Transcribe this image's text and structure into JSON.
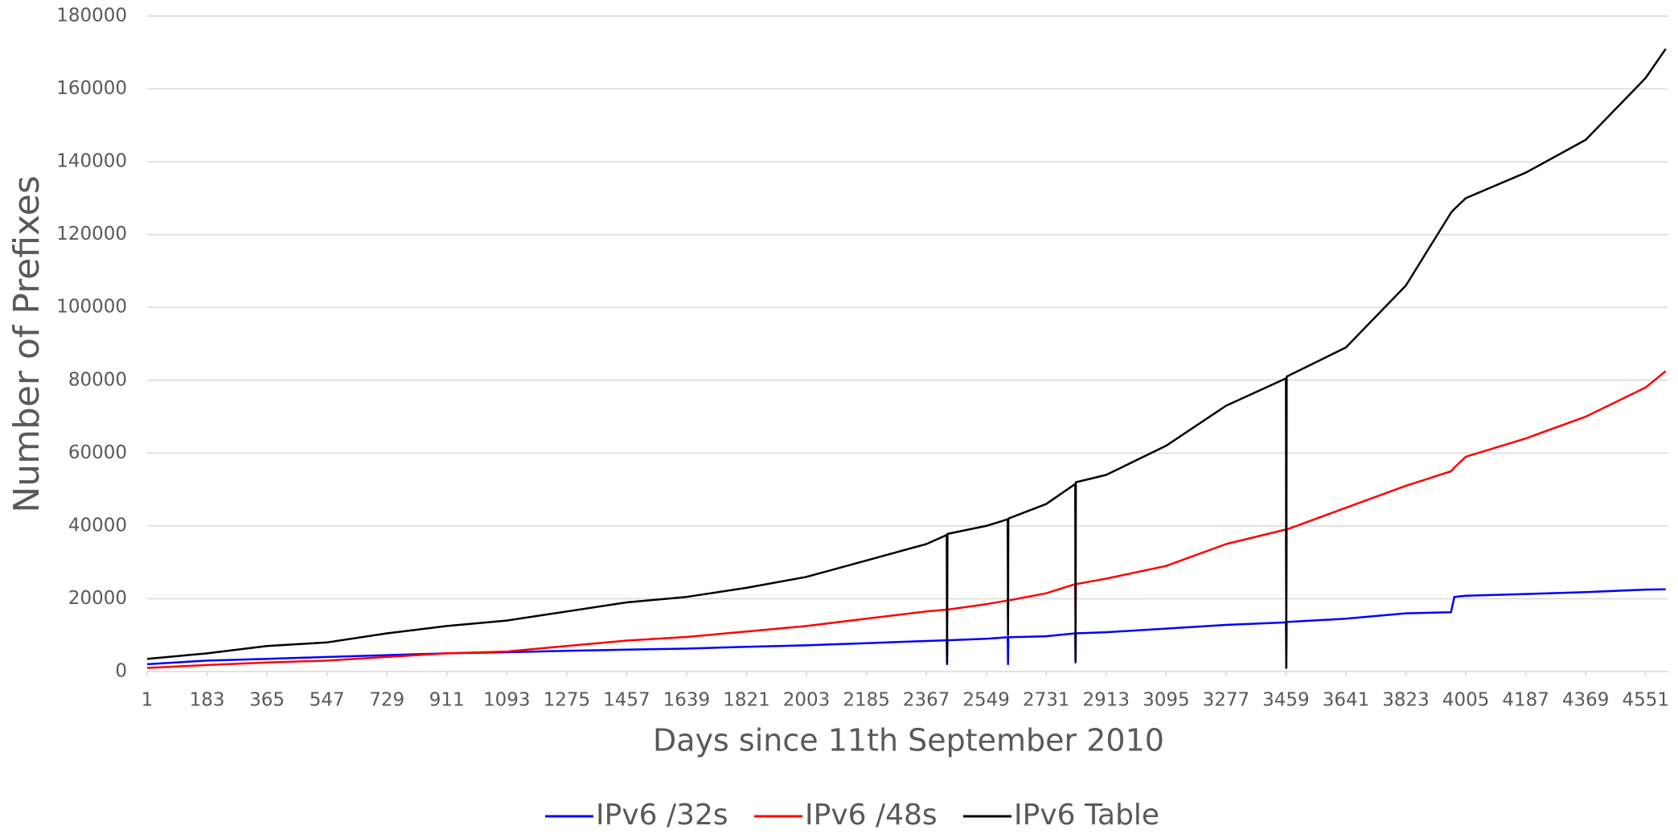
{
  "chart_data": {
    "type": "line",
    "x_label": "Days since 11th September 2010",
    "y_label": "Number of Prefixes",
    "x": [
      1,
      183,
      365,
      547,
      729,
      911,
      1093,
      1275,
      1457,
      1639,
      1821,
      2003,
      2185,
      2367,
      2429,
      2430,
      2431,
      2549,
      2614,
      2615,
      2616,
      2731,
      2819,
      2820,
      2821,
      2913,
      3095,
      3277,
      3459,
      3460,
      3461,
      3641,
      3823,
      3960,
      3970,
      4005,
      4187,
      4369,
      4551,
      4612
    ],
    "series": [
      {
        "name": "IPv6 /32s",
        "color": "#0000ff",
        "values": [
          2000,
          3000,
          3500,
          4000,
          4500,
          5000,
          5300,
          5700,
          6000,
          6300,
          6800,
          7200,
          7800,
          8400,
          8600,
          2000,
          8600,
          9000,
          9400,
          2000,
          9400,
          9700,
          10500,
          2500,
          10500,
          10800,
          11800,
          12800,
          13500,
          1000,
          13600,
          14500,
          16000,
          16300,
          20500,
          20800,
          21300,
          21800,
          22500,
          22600
        ]
      },
      {
        "name": "IPv6 /48s",
        "color": "#ff0000",
        "values": [
          1000,
          1800,
          2500,
          3000,
          4000,
          5000,
          5500,
          7000,
          8500,
          9500,
          11000,
          12500,
          14500,
          16500,
          17000,
          14000,
          17000,
          18500,
          19500,
          14000,
          19500,
          21500,
          24000,
          15000,
          24000,
          25500,
          29000,
          35000,
          39000,
          15000,
          39000,
          45000,
          51000,
          55000,
          56000,
          59000,
          64000,
          70000,
          78000,
          82500
        ]
      },
      {
        "name": "IPv6 Table",
        "color": "#000000",
        "values": [
          3500,
          5000,
          7000,
          8000,
          10500,
          12500,
          14000,
          16500,
          19000,
          20500,
          23000,
          26000,
          30500,
          35000,
          37500,
          2500,
          37800,
          40000,
          41800,
          10000,
          42000,
          46000,
          51500,
          3000,
          52000,
          54000,
          62000,
          73000,
          80500,
          1000,
          81000,
          89000,
          106000,
          126000,
          127000,
          130000,
          137000,
          146000,
          163000,
          171000
        ]
      }
    ],
    "xlim": [
      1,
      4620
    ],
    "xticks": [
      1,
      183,
      365,
      547,
      729,
      911,
      1093,
      1275,
      1457,
      1639,
      1821,
      2003,
      2185,
      2367,
      2549,
      2731,
      2913,
      3095,
      3277,
      3459,
      3641,
      3823,
      4005,
      4187,
      4369,
      4551
    ],
    "ylim": [
      0,
      180000
    ],
    "yticks": [
      0,
      20000,
      40000,
      60000,
      80000,
      100000,
      120000,
      140000,
      160000,
      180000
    ],
    "grid": true,
    "legend": "bottom"
  }
}
